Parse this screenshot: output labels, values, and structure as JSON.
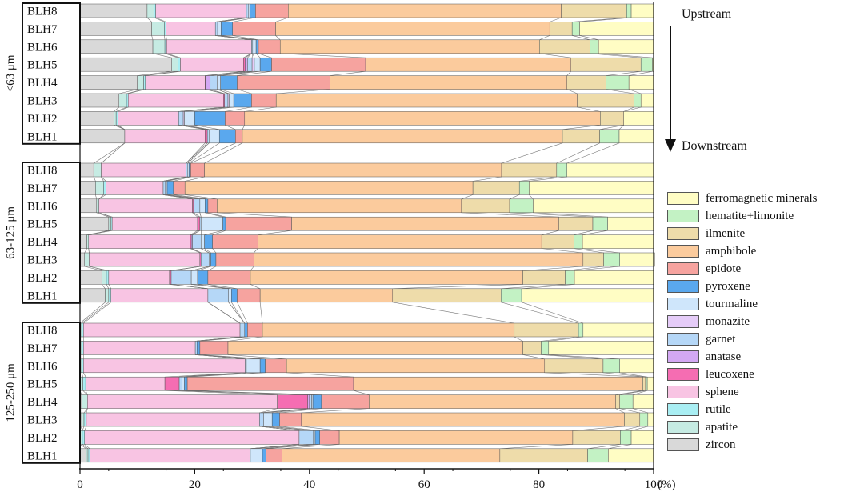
{
  "chart_data": {
    "type": "stacked-horizontal-bar",
    "xlabel_unit": "(%)",
    "xlim": [
      0,
      100
    ],
    "x_ticks": [
      0,
      20,
      40,
      60,
      80,
      100
    ],
    "minerals": [
      {
        "name": "zircon",
        "color": "#d9d9d9"
      },
      {
        "name": "apatite",
        "color": "#c6ebe3"
      },
      {
        "name": "rutile",
        "color": "#a9eef3"
      },
      {
        "name": "sphene",
        "color": "#f8c4e3"
      },
      {
        "name": "leucoxene",
        "color": "#f56db2"
      },
      {
        "name": "anatase",
        "color": "#d3a8f3"
      },
      {
        "name": "garnet",
        "color": "#b5d7f7"
      },
      {
        "name": "monazite",
        "color": "#e5ccf8"
      },
      {
        "name": "tourmaline",
        "color": "#cfe6fb"
      },
      {
        "name": "pyroxene",
        "color": "#5aa8ee"
      },
      {
        "name": "epidote",
        "color": "#f6a39f"
      },
      {
        "name": "amphibole",
        "color": "#fbcb9d"
      },
      {
        "name": "ilmenite",
        "color": "#eedcaa"
      },
      {
        "name": "hematite+limonite",
        "color": "#c3f2c4"
      },
      {
        "name": "ferromagnetic minerals",
        "color": "#fffdc4"
      }
    ],
    "groups": [
      {
        "label": "<63 μm",
        "samples": [
          {
            "name": "BLH8",
            "values": [
              11.7,
              1.2,
              0.3,
              15.8,
              0,
              0,
              0.4,
              0,
              0.2,
              1.0,
              5.7,
              47.6,
              11.4,
              0.8,
              3.9
            ]
          },
          {
            "name": "BLH7",
            "values": [
              12.5,
              2.2,
              0.3,
              8.6,
              0,
              0,
              0.4,
              0,
              0.6,
              2.0,
              7.5,
              47.8,
              3.9,
              1.3,
              12.9
            ]
          },
          {
            "name": "BLH6",
            "values": [
              12.7,
              2.1,
              0.3,
              14.8,
              0,
              0,
              0.2,
              0,
              0.6,
              0.4,
              3.8,
              45.2,
              8.8,
              1.5,
              9.6
            ]
          },
          {
            "name": "BLH5",
            "values": [
              16.0,
              1.1,
              0.4,
              11.0,
              0.3,
              0.4,
              0.8,
              0.4,
              1.0,
              2.0,
              16.4,
              35.8,
              12.2,
              2.0,
              0.2
            ]
          },
          {
            "name": "BLH4",
            "values": [
              10.0,
              1.1,
              0.3,
              10.4,
              0.1,
              0.8,
              1.2,
              0,
              0.6,
              2.9,
              16.2,
              41.3,
              6.8,
              4.0,
              4.3
            ]
          },
          {
            "name": "BLH3",
            "values": [
              6.8,
              1.3,
              0.3,
              16.6,
              0.2,
              0,
              0.6,
              0.2,
              0.8,
              3.1,
              4.3,
              52.5,
              9.9,
              1.2,
              2.2
            ]
          },
          {
            "name": "BLH2",
            "values": [
              5.9,
              0.4,
              0.3,
              10.6,
              0,
              0,
              0.8,
              0.2,
              1.8,
              5.3,
              3.4,
              62.0,
              4.1,
              0,
              5.2
            ]
          },
          {
            "name": "BLH1",
            "values": [
              7.8,
              0,
              0,
              14.0,
              0.4,
              0,
              0.3,
              0,
              1.8,
              2.8,
              1.2,
              55.8,
              6.5,
              3.4,
              6.0
            ]
          }
        ]
      },
      {
        "label": "63-125 μm",
        "samples": [
          {
            "name": "BLH8",
            "values": [
              2.4,
              1.3,
              0,
              14.8,
              0,
              0,
              0.3,
              0,
              0.2,
              0.3,
              2.4,
              51.8,
              9.6,
              1.8,
              15.1
            ]
          },
          {
            "name": "BLH7",
            "values": [
              2.7,
              1.4,
              0.4,
              10.0,
              0,
              0,
              0.4,
              0,
              0.3,
              1.1,
              2.0,
              50.2,
              8.1,
              1.7,
              21.7
            ]
          },
          {
            "name": "BLH6",
            "values": [
              2.9,
              0.4,
              0,
              16.3,
              0.2,
              0,
              1.1,
              0,
              0.9,
              0.5,
              1.6,
              42.6,
              8.4,
              4.1,
              21.0
            ]
          },
          {
            "name": "BLH5",
            "values": [
              5.0,
              0.4,
              0.2,
              14.9,
              0.4,
              0,
              0.2,
              0,
              3.8,
              0.5,
              11.5,
              46.6,
              5.9,
              2.6,
              8.0
            ]
          },
          {
            "name": "BLH4",
            "values": [
              1.2,
              0.3,
              0,
              17.7,
              0.2,
              0.2,
              1.5,
              0,
              0.6,
              1.4,
              7.9,
              49.5,
              5.6,
              1.5,
              12.4
            ]
          },
          {
            "name": "BLH3",
            "values": [
              0.8,
              0.8,
              0,
              19.3,
              0.2,
              0,
              1.4,
              0,
              0.3,
              0.9,
              6.6,
              57.4,
              3.6,
              2.8,
              6.1
            ]
          },
          {
            "name": "BLH2",
            "values": [
              3.8,
              0.8,
              0.4,
              10.6,
              0.3,
              0,
              3.5,
              0,
              1.1,
              1.8,
              7.4,
              47.5,
              7.4,
              1.6,
              13.8
            ]
          },
          {
            "name": "BLH1",
            "values": [
              4.4,
              0.6,
              0.4,
              16.9,
              0,
              0,
              3.6,
              0,
              0.5,
              1.0,
              4.0,
              23.1,
              18.9,
              3.6,
              23.0
            ]
          }
        ]
      },
      {
        "label": "125-250 μm",
        "samples": [
          {
            "name": "BLH8",
            "values": [
              0,
              0.3,
              0.3,
              27.3,
              0,
              0,
              0.8,
              0,
              0,
              0.5,
              2.6,
              43.9,
              11.2,
              0.8,
              12.3
            ]
          },
          {
            "name": "BLH7",
            "values": [
              0,
              0.3,
              0.3,
              19.5,
              0,
              0,
              0.3,
              0,
              0,
              0.5,
              4.9,
              51.4,
              3.2,
              1.3,
              18.3
            ]
          },
          {
            "name": "BLH6",
            "values": [
              0,
              0.3,
              0.3,
              28.2,
              0,
              0,
              0.2,
              0,
              2.4,
              0.9,
              3.7,
              45.0,
              10.2,
              2.9,
              5.9
            ]
          },
          {
            "name": "BLH5",
            "values": [
              0,
              0.5,
              0.5,
              13.8,
              2.5,
              0,
              0.5,
              0,
              0.4,
              0.5,
              29.0,
              50.4,
              0.5,
              0.3,
              1.1
            ]
          },
          {
            "name": "BLH4",
            "values": [
              0.3,
              1.0,
              0,
              33.1,
              5.3,
              0.3,
              0.4,
              0,
              0.2,
              1.5,
              8.3,
              43.0,
              0.7,
              2.3,
              3.6
            ]
          },
          {
            "name": "BLH3",
            "values": [
              0.3,
              0.4,
              0.4,
              30.2,
              0,
              0,
              0.7,
              0,
              1.5,
              1.3,
              3.8,
              56.3,
              2.7,
              1.4,
              1.0
            ]
          },
          {
            "name": "BLH2",
            "values": [
              0,
              0.4,
              0.4,
              37.4,
              0,
              0,
              2.5,
              0,
              0.3,
              0.8,
              3.4,
              40.7,
              8.3,
              1.9,
              3.9
            ]
          },
          {
            "name": "BLH1",
            "values": [
              1.1,
              0.3,
              0.3,
              28.0,
              0,
              0,
              0,
              0,
              2.1,
              0.6,
              2.8,
              38.0,
              15.3,
              3.6,
              7.9
            ]
          }
        ]
      }
    ],
    "annotations": {
      "upstream": "Upstream",
      "downstream": "Downstream"
    }
  }
}
